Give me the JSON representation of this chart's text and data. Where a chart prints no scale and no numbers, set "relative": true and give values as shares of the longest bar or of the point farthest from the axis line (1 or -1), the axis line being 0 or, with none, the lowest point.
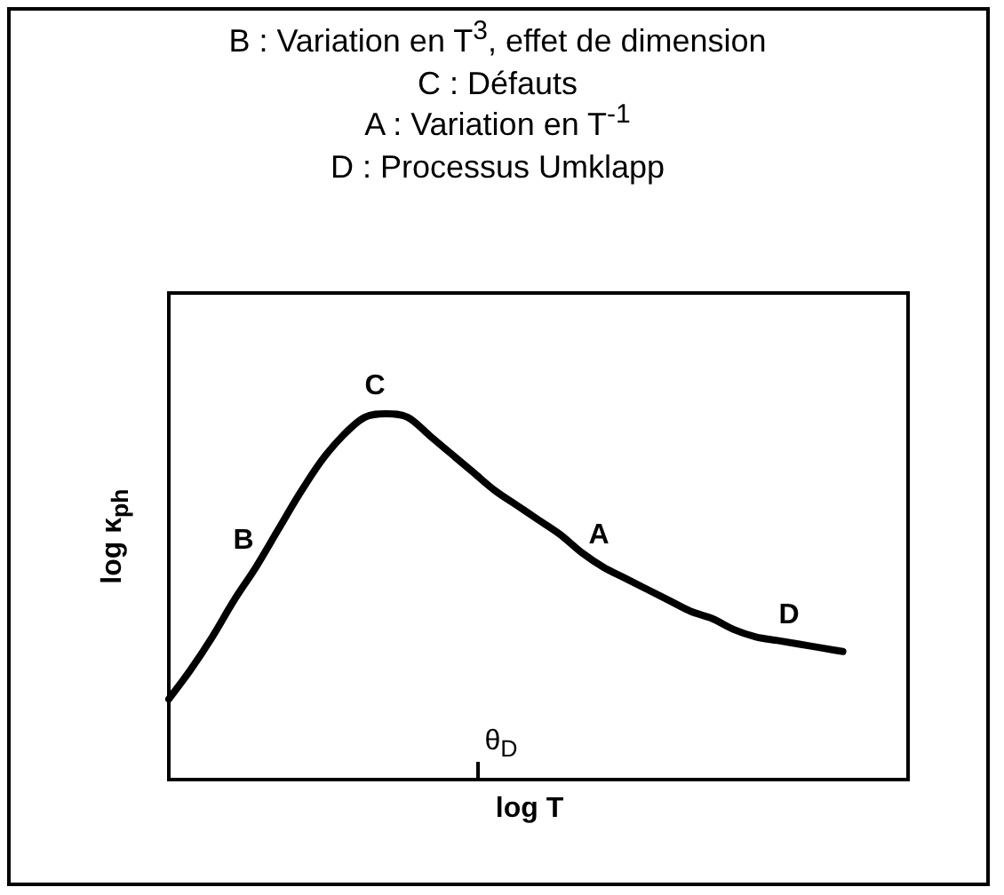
{
  "chart_data": {
    "type": "line",
    "relative": true,
    "xlabel": "log T",
    "ylabel": "log κ$_{ph}$",
    "categories": [
      null,
      null,
      null,
      null,
      null,
      null,
      null,
      null,
      null,
      null,
      null,
      null,
      null,
      null,
      null,
      null,
      null,
      null,
      null,
      null,
      null,
      null,
      null,
      null,
      null,
      null,
      null,
      null,
      null,
      null,
      null,
      null,
      null,
      null,
      null
    ],
    "series": [
      {
        "color": "#000000",
        "values": [
          0.22,
          0.3,
          0.39,
          0.49,
          0.58,
          0.68,
          0.78,
          0.87,
          0.94,
          0.99,
          1.0,
          0.99,
          0.94,
          0.89,
          0.84,
          0.79,
          0.75,
          0.71,
          0.67,
          0.62,
          0.58,
          0.55,
          0.52,
          0.49,
          0.46,
          0.44,
          0.41,
          0.39,
          0.38,
          0.37,
          0.36,
          0.35,
          null,
          null,
          null
        ]
      }
    ],
    "annotations": [
      "B : Variation en T$^{3}$, effet de dimension",
      "C : Défauts",
      "A : Variation en T$^{-1}$",
      "D : Processus Umklapp",
      "B",
      "C",
      "A",
      "D",
      "θ$_{D}$"
    ],
    "tick_labels": false,
    "legend": false,
    "marker": "none",
    "line_style": "solid"
  }
}
